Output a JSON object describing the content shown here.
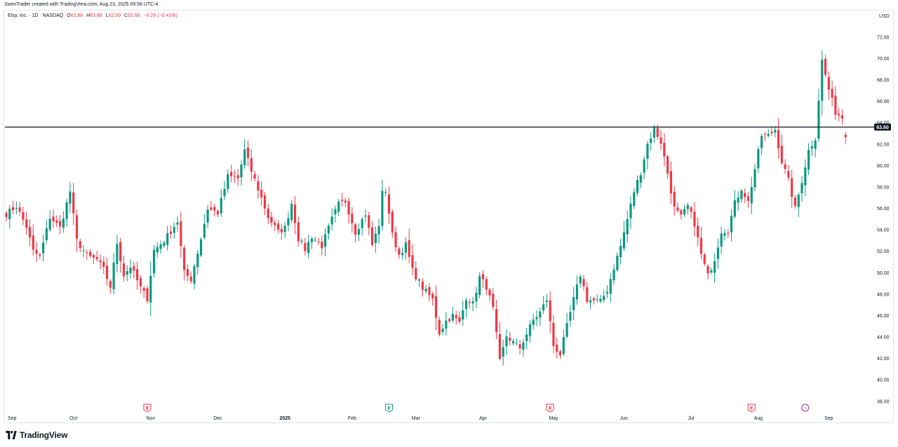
{
  "header": {
    "credit": "SwimTrader created with TradingView.com, Aug 23, 2025 09:58 UTC-4"
  },
  "legend": {
    "symbol": "Etsy, Inc. · 1D · NASDAQ",
    "open_label": "O",
    "open": "62.88",
    "high_label": "H",
    "high": "63.88",
    "low_label": "L",
    "low": "62.00",
    "close_label": "C",
    "close": "62.66",
    "change": "−0.26 (−0.41%)"
  },
  "currency": "USD",
  "footer": {
    "brand": "TradingView"
  },
  "colors": {
    "up": "#089981",
    "down": "#f23645",
    "line": "#131722",
    "grid_text": "#131722",
    "earnings_down": "#f23645",
    "earnings_up": "#089981",
    "dividend": "#9c27b0"
  },
  "chart_data": {
    "type": "candlestick",
    "ylim": [
      37.2,
      73.5
    ],
    "y_ticks": [
      "38.00",
      "40.00",
      "42.00",
      "44.00",
      "46.00",
      "48.00",
      "50.00",
      "52.00",
      "54.00",
      "56.00",
      "58.00",
      "60.00",
      "62.00",
      "64.00",
      "66.00",
      "68.00",
      "70.00",
      "72.00"
    ],
    "x_ticks": [
      {
        "label": "Sep",
        "index": 0
      },
      {
        "label": "Oct",
        "index": 20
      },
      {
        "label": "Nov",
        "index": 43
      },
      {
        "label": "Dec",
        "index": 63
      },
      {
        "label": "2025",
        "index": 83,
        "bold": true
      },
      {
        "label": "Feb",
        "index": 103
      },
      {
        "label": "Mar",
        "index": 122
      },
      {
        "label": "Apr",
        "index": 142
      },
      {
        "label": "May",
        "index": 163
      },
      {
        "label": "Jun",
        "index": 184
      },
      {
        "label": "Jul",
        "index": 204
      },
      {
        "label": "Aug",
        "index": 224
      },
      {
        "label": "Sep",
        "index": 245
      }
    ],
    "horizontal_line": {
      "value": 63.6,
      "label": "63.60"
    },
    "markers": [
      {
        "type": "earnings",
        "index": 42,
        "letter": "E",
        "color": "#f23645"
      },
      {
        "type": "earnings",
        "index": 114,
        "letter": "E",
        "color": "#089981"
      },
      {
        "type": "earnings",
        "index": 162,
        "letter": "E",
        "color": "#f23645"
      },
      {
        "type": "earnings",
        "index": 222,
        "letter": "E",
        "color": "#f23645"
      },
      {
        "type": "dividend",
        "index": 238,
        "letter": "⚡",
        "color": "#9c27b0"
      }
    ],
    "anchors": [
      [
        0,
        55.5
      ],
      [
        3,
        56.2
      ],
      [
        6,
        54.3
      ],
      [
        8,
        52.0
      ],
      [
        10,
        51.5
      ],
      [
        13,
        55.2
      ],
      [
        16,
        54.2
      ],
      [
        19,
        57.6
      ],
      [
        21,
        53.0
      ],
      [
        24,
        51.6
      ],
      [
        27,
        51.2
      ],
      [
        29,
        50.3
      ],
      [
        31,
        48.7
      ],
      [
        33,
        52.8
      ],
      [
        35,
        49.8
      ],
      [
        37,
        50.6
      ],
      [
        40,
        48.6
      ],
      [
        42,
        47.6
      ],
      [
        44,
        52.1
      ],
      [
        47,
        53.0
      ],
      [
        51,
        54.8
      ],
      [
        53,
        50.0
      ],
      [
        55,
        49.4
      ],
      [
        58,
        53.2
      ],
      [
        60,
        56.0
      ],
      [
        63,
        55.6
      ],
      [
        66,
        59.0
      ],
      [
        69,
        58.8
      ],
      [
        71,
        61.4
      ],
      [
        73,
        59.5
      ],
      [
        76,
        57.0
      ],
      [
        78,
        55.2
      ],
      [
        81,
        53.8
      ],
      [
        83,
        54.2
      ],
      [
        85,
        56.5
      ],
      [
        87,
        53.2
      ],
      [
        89,
        52.2
      ],
      [
        91,
        53.4
      ],
      [
        94,
        52.5
      ],
      [
        97,
        55.0
      ],
      [
        99,
        56.4
      ],
      [
        101,
        56.7
      ],
      [
        104,
        53.8
      ],
      [
        107,
        55.5
      ],
      [
        109,
        52.6
      ],
      [
        111,
        54.5
      ],
      [
        112,
        57.4
      ],
      [
        113,
        57.7
      ],
      [
        115,
        53.5
      ],
      [
        117,
        51.7
      ],
      [
        119,
        52.6
      ],
      [
        121,
        50.2
      ],
      [
        124,
        48.6
      ],
      [
        127,
        47.5
      ],
      [
        129,
        44.4
      ],
      [
        131,
        45.5
      ],
      [
        133,
        46.0
      ],
      [
        135,
        45.3
      ],
      [
        137,
        47.7
      ],
      [
        139,
        47.1
      ],
      [
        141,
        49.6
      ],
      [
        143,
        48.7
      ],
      [
        145,
        46.6
      ],
      [
        147,
        41.7
      ],
      [
        149,
        44.1
      ],
      [
        151,
        43.5
      ],
      [
        153,
        43.0
      ],
      [
        155,
        44.3
      ],
      [
        157,
        45.6
      ],
      [
        159,
        46.3
      ],
      [
        161,
        47.5
      ],
      [
        163,
        43.2
      ],
      [
        165,
        42.4
      ],
      [
        167,
        45.0
      ],
      [
        169,
        47.5
      ],
      [
        171,
        49.8
      ],
      [
        173,
        47.5
      ],
      [
        175,
        47.4
      ],
      [
        177,
        47.3
      ],
      [
        179,
        48.4
      ],
      [
        181,
        50.5
      ],
      [
        183,
        52.5
      ],
      [
        185,
        55.0
      ],
      [
        187,
        57.6
      ],
      [
        189,
        59.4
      ],
      [
        191,
        62.0
      ],
      [
        193,
        63.4
      ],
      [
        195,
        62.2
      ],
      [
        197,
        59.3
      ],
      [
        199,
        56.0
      ],
      [
        201,
        55.2
      ],
      [
        203,
        56.2
      ],
      [
        205,
        54.6
      ],
      [
        207,
        51.7
      ],
      [
        209,
        49.7
      ],
      [
        211,
        51.3
      ],
      [
        213,
        53.9
      ],
      [
        215,
        54.0
      ],
      [
        217,
        56.5
      ],
      [
        219,
        57.9
      ],
      [
        221,
        56.6
      ],
      [
        223,
        59.7
      ],
      [
        225,
        62.8
      ],
      [
        227,
        62.8
      ],
      [
        229,
        63.4
      ],
      [
        231,
        60.4
      ],
      [
        233,
        58.6
      ],
      [
        235,
        56.0
      ],
      [
        237,
        58.6
      ],
      [
        239,
        61.4
      ],
      [
        241,
        62.6
      ],
      [
        243,
        69.8
      ],
      [
        245,
        67.1
      ],
      [
        247,
        65.0
      ],
      [
        249,
        64.5
      ],
      [
        250,
        62.7
      ]
    ],
    "n_candles": 251
  }
}
